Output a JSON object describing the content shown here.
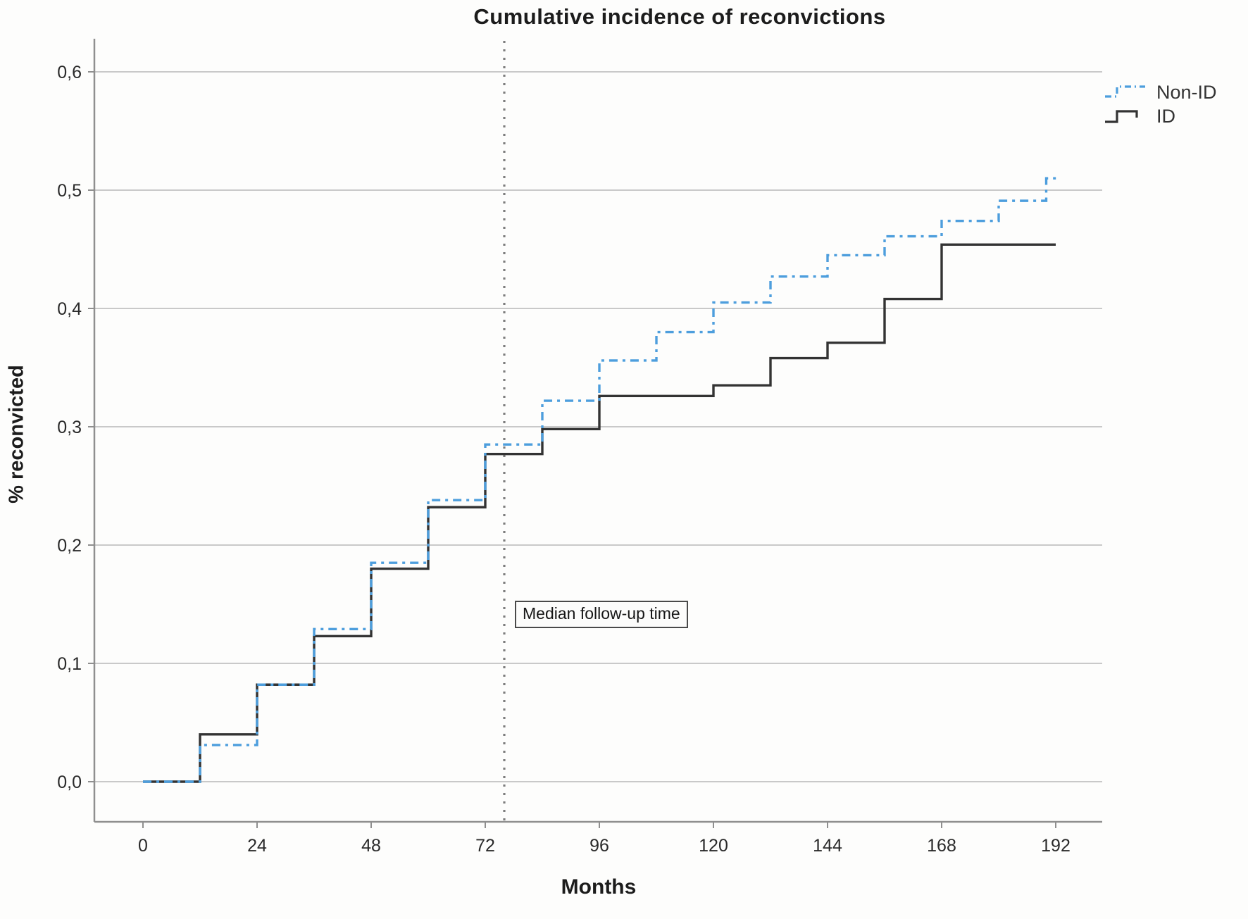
{
  "chart_data": {
    "type": "line",
    "subtype": "step-after",
    "title": "Cumulative incidence of reconvictions",
    "xlabel": "Months",
    "ylabel": "% reconvicted",
    "x_ticks": [
      0,
      24,
      48,
      72,
      96,
      120,
      144,
      168,
      192
    ],
    "y_tick_labels": [
      "0,0",
      "0,1",
      "0,2",
      "0,3",
      "0,4",
      "0,5",
      "0,6"
    ],
    "y_tick_values": [
      0,
      0.1,
      0.2,
      0.3,
      0.4,
      0.5,
      0.6
    ],
    "xlim": [
      -10,
      202
    ],
    "ylim": [
      -0.034,
      0.628
    ],
    "grid": "horizontal",
    "legend_position": "top-right",
    "colors": {
      "grid": "#c9c9c9",
      "axis": "#8f8f8f",
      "median_line": "#7d7d7d",
      "tick_text": "#2a2a2a"
    },
    "annotation": {
      "label": "Median follow-up time",
      "x_months": 76,
      "style": "vertical-dotted-line"
    },
    "series": [
      {
        "name": "ID",
        "color": "#333333",
        "dash": "solid",
        "points": [
          [
            0,
            0
          ],
          [
            12,
            0.04
          ],
          [
            24,
            0.082
          ],
          [
            36,
            0.123
          ],
          [
            48,
            0.18
          ],
          [
            60,
            0.232
          ],
          [
            72,
            0.277
          ],
          [
            84,
            0.298
          ],
          [
            96,
            0.326
          ],
          [
            120,
            0.335
          ],
          [
            132,
            0.358
          ],
          [
            144,
            0.371
          ],
          [
            156,
            0.408
          ],
          [
            168,
            0.454
          ],
          [
            192,
            0.454
          ]
        ]
      },
      {
        "name": "Non-ID",
        "color": "#4d9edd",
        "dash": "dash-dot",
        "points": [
          [
            0,
            0
          ],
          [
            12,
            0.031
          ],
          [
            24,
            0.082
          ],
          [
            36,
            0.129
          ],
          [
            48,
            0.185
          ],
          [
            60,
            0.238
          ],
          [
            72,
            0.285
          ],
          [
            84,
            0.322
          ],
          [
            96,
            0.356
          ],
          [
            108,
            0.38
          ],
          [
            120,
            0.405
          ],
          [
            132,
            0.427
          ],
          [
            144,
            0.445
          ],
          [
            156,
            0.461
          ],
          [
            168,
            0.474
          ],
          [
            180,
            0.491
          ],
          [
            190,
            0.51
          ],
          [
            193,
            0.51
          ]
        ]
      }
    ]
  }
}
